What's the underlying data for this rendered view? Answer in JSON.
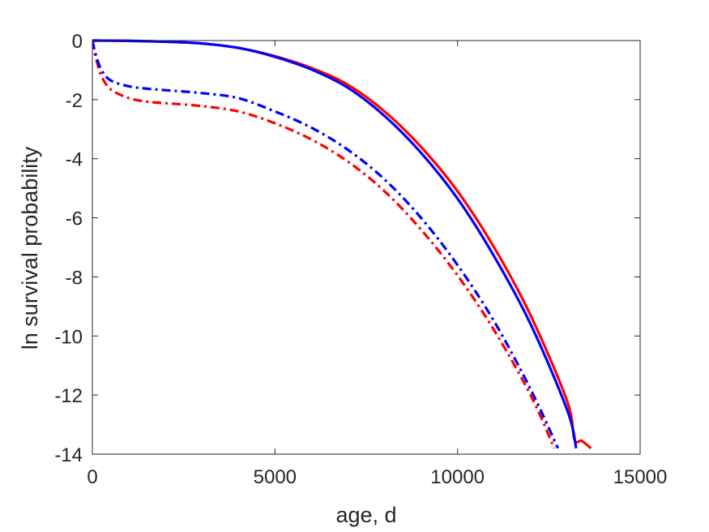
{
  "chart_data": {
    "type": "line",
    "title": "",
    "xlabel": "age, d",
    "ylabel": "ln survival probability",
    "xlim": [
      0,
      15000
    ],
    "ylim": [
      -14,
      0
    ],
    "xticks": [
      0,
      5000,
      10000,
      15000
    ],
    "yticks": [
      0,
      -2,
      -4,
      -6,
      -8,
      -10,
      -12,
      -14
    ],
    "xtick_labels": [
      "0",
      "5000",
      "10000",
      "15000"
    ],
    "ytick_labels": [
      "0",
      "-2",
      "-4",
      "-6",
      "-8",
      "-10",
      "-12",
      "-14"
    ],
    "grid": false,
    "legend": "none",
    "series": [
      {
        "color": "#ff0000",
        "style": "solid",
        "x": [
          0,
          1000,
          2000,
          3000,
          4000,
          5000,
          6000,
          7000,
          8000,
          9000,
          10000,
          11000,
          12000,
          13000,
          13200,
          13400,
          13650
        ],
        "y": [
          0,
          -0.01,
          -0.04,
          -0.1,
          -0.25,
          -0.53,
          -0.93,
          -1.5,
          -2.4,
          -3.6,
          -5.1,
          -7.0,
          -9.3,
          -12.2,
          -13.5,
          -13.55,
          -13.8
        ]
      },
      {
        "color": "#0000ff",
        "style": "solid",
        "x": [
          0,
          1000,
          2000,
          3000,
          4000,
          5000,
          6000,
          7000,
          8000,
          9000,
          10000,
          11000,
          12000,
          13000,
          13250
        ],
        "y": [
          0,
          -0.01,
          -0.04,
          -0.1,
          -0.25,
          -0.55,
          -0.98,
          -1.6,
          -2.55,
          -3.8,
          -5.35,
          -7.3,
          -9.6,
          -12.5,
          -13.8
        ]
      },
      {
        "color": "#ff0000",
        "style": "dashdot",
        "x": [
          0,
          100,
          250,
          500,
          1000,
          1500,
          2000,
          3000,
          4000,
          5000,
          6000,
          7000,
          8000,
          9000,
          10000,
          11000,
          12000,
          12650
        ],
        "y": [
          0,
          -0.6,
          -1.2,
          -1.65,
          -1.95,
          -2.07,
          -2.12,
          -2.22,
          -2.4,
          -2.8,
          -3.35,
          -4.1,
          -5.1,
          -6.4,
          -7.95,
          -9.8,
          -12.0,
          -13.8
        ]
      },
      {
        "color": "#0000ff",
        "style": "dashdot",
        "x": [
          0,
          100,
          250,
          500,
          1000,
          1500,
          2000,
          3000,
          4000,
          5000,
          6000,
          7000,
          8000,
          9000,
          10000,
          11000,
          12000,
          12750
        ],
        "y": [
          0,
          -0.5,
          -1.0,
          -1.35,
          -1.55,
          -1.63,
          -1.68,
          -1.78,
          -1.95,
          -2.4,
          -2.95,
          -3.7,
          -4.7,
          -6.0,
          -7.6,
          -9.5,
          -11.8,
          -13.8
        ]
      }
    ]
  }
}
